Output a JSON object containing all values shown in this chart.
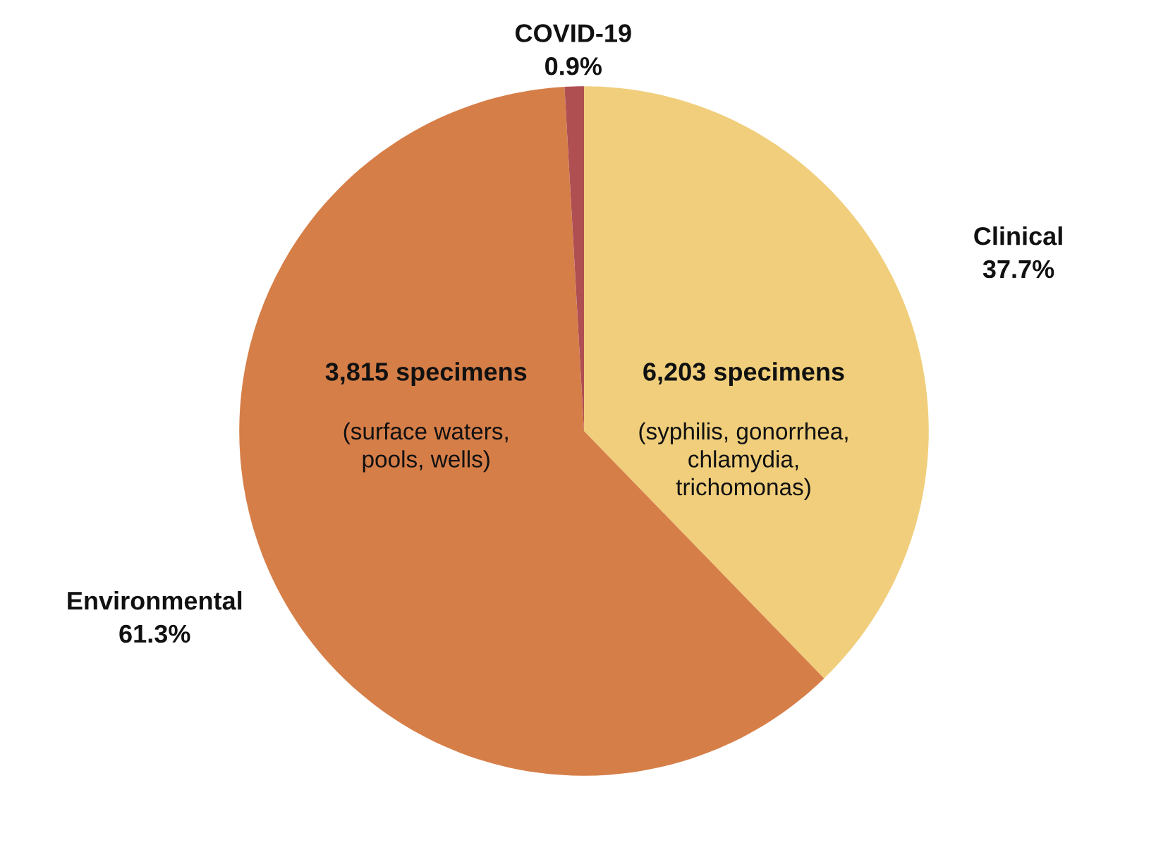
{
  "chart_data": {
    "type": "pie",
    "categories": [
      "Clinical",
      "Environmental",
      "COVID-19"
    ],
    "values": [
      37.7,
      61.3,
      0.9
    ],
    "value_labels": [
      "37.7%",
      "61.3%",
      "0.9%"
    ],
    "colors": [
      "#f0ce7b",
      "#d67e48",
      "#b04f52"
    ],
    "annotations": [
      {
        "text": "6,203 specimens",
        "x": "Clinical"
      },
      {
        "text": "(syphilis, gonorrhea,\nchlamydia,\ntrichomonas)",
        "x": "Clinical"
      },
      {
        "text": "3,815 specimens",
        "x": "Environmental"
      },
      {
        "text": "(surface waters,\npools, wells)",
        "x": "Environmental"
      }
    ],
    "legend": false
  }
}
